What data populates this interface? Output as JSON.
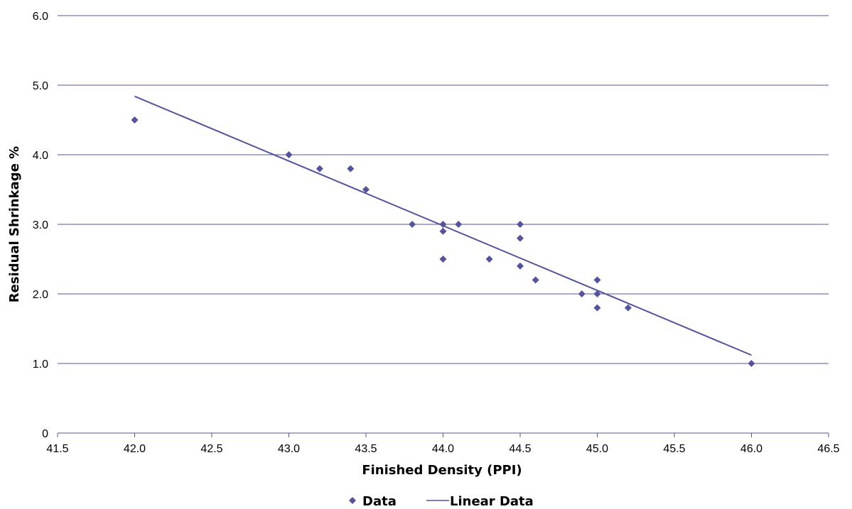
{
  "chart_data": {
    "type": "scatter",
    "xlabel": "Finished Density (PPI)",
    "ylabel": "Residual Shrinkage %",
    "xlim": [
      41.5,
      46.5
    ],
    "ylim": [
      0,
      6
    ],
    "x_ticks": [
      {
        "value": 41.5,
        "label": "41.5"
      },
      {
        "value": 42.0,
        "label": "42.0"
      },
      {
        "value": 42.5,
        "label": "42.5"
      },
      {
        "value": 43.0,
        "label": "43.0"
      },
      {
        "value": 43.5,
        "label": "43.5"
      },
      {
        "value": 44.0,
        "label": "44.0"
      },
      {
        "value": 44.5,
        "label": "44.5"
      },
      {
        "value": 45.0,
        "label": "45.0"
      },
      {
        "value": 45.5,
        "label": "45.5"
      },
      {
        "value": 46.0,
        "label": "46.0"
      },
      {
        "value": 46.5,
        "label": "46.5"
      }
    ],
    "y_ticks": [
      {
        "value": 0,
        "label": "0"
      },
      {
        "value": 1,
        "label": "1.0"
      },
      {
        "value": 2,
        "label": "2.0"
      },
      {
        "value": 3,
        "label": "3.0"
      },
      {
        "value": 4,
        "label": "4.0"
      },
      {
        "value": 5,
        "label": "5.0"
      },
      {
        "value": 6,
        "label": "6.0"
      }
    ],
    "grid": "horizontal",
    "legend_position": "bottom",
    "series": [
      {
        "name": "Data",
        "kind": "scatter",
        "marker": "diamond",
        "color": "#54539c",
        "points": [
          {
            "x": 42.0,
            "y": 4.5
          },
          {
            "x": 43.0,
            "y": 4.0
          },
          {
            "x": 43.2,
            "y": 3.8
          },
          {
            "x": 43.4,
            "y": 3.8
          },
          {
            "x": 43.5,
            "y": 3.5
          },
          {
            "x": 43.8,
            "y": 3.0
          },
          {
            "x": 44.0,
            "y": 3.0
          },
          {
            "x": 44.0,
            "y": 2.9
          },
          {
            "x": 44.0,
            "y": 2.5
          },
          {
            "x": 44.1,
            "y": 3.0
          },
          {
            "x": 44.3,
            "y": 2.5
          },
          {
            "x": 44.5,
            "y": 3.0
          },
          {
            "x": 44.5,
            "y": 2.8
          },
          {
            "x": 44.5,
            "y": 2.4
          },
          {
            "x": 44.6,
            "y": 2.2
          },
          {
            "x": 44.9,
            "y": 2.0
          },
          {
            "x": 45.0,
            "y": 2.2
          },
          {
            "x": 45.0,
            "y": 2.0
          },
          {
            "x": 45.0,
            "y": 1.8
          },
          {
            "x": 45.2,
            "y": 1.8
          },
          {
            "x": 46.0,
            "y": 1.0
          }
        ]
      },
      {
        "name": "Linear Data",
        "kind": "line",
        "color": "#54539c",
        "points": [
          {
            "x": 42.0,
            "y": 4.84
          },
          {
            "x": 46.0,
            "y": 1.12
          }
        ]
      }
    ]
  }
}
